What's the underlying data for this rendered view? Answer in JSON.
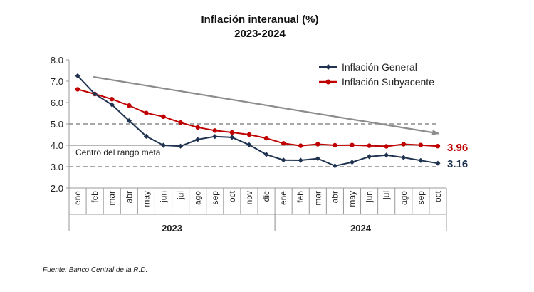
{
  "chart_data": {
    "type": "line",
    "title": "Inflación interanual (%)",
    "subtitle": "2023-2024",
    "ylim": [
      2.0,
      8.0
    ],
    "yticks": [
      "2.0",
      "3.0",
      "4.0",
      "5.0",
      "6.0",
      "7.0",
      "8.0"
    ],
    "categories": [
      "ene",
      "feb",
      "mar",
      "abr",
      "may",
      "jun",
      "jul",
      "ago",
      "sep",
      "oct",
      "nov",
      "dic",
      "ene",
      "feb",
      "mar",
      "abr",
      "may",
      "jun",
      "jul",
      "ago",
      "sep",
      "oct"
    ],
    "years": [
      {
        "label": "2023",
        "start": 0,
        "end": 11
      },
      {
        "label": "2024",
        "start": 12,
        "end": 21
      }
    ],
    "series": [
      {
        "name": "Inflación General",
        "color": "#1f3350",
        "values": [
          7.25,
          6.4,
          5.9,
          5.15,
          4.42,
          4.0,
          3.96,
          4.27,
          4.41,
          4.37,
          4.02,
          3.57,
          3.31,
          3.3,
          3.38,
          3.04,
          3.21,
          3.47,
          3.54,
          3.43,
          3.29,
          3.16
        ]
      },
      {
        "name": "Inflación Subyacente",
        "color": "#c00000",
        "values": [
          6.62,
          6.4,
          6.16,
          5.86,
          5.51,
          5.34,
          5.06,
          4.84,
          4.69,
          4.6,
          4.5,
          4.33,
          4.09,
          3.98,
          4.05,
          4.0,
          4.01,
          3.98,
          3.95,
          4.05,
          4.01,
          3.96
        ]
      }
    ],
    "reference_lines": [
      {
        "value": 5.0,
        "style": "dashed"
      },
      {
        "value": 4.0,
        "style": "solid",
        "label": "Centro del rango meta"
      },
      {
        "value": 3.0,
        "style": "dashed"
      }
    ],
    "trend_arrow": {
      "from": [
        1,
        7.2
      ],
      "to": [
        21,
        4.55
      ]
    },
    "end_labels": [
      {
        "text": "3.96",
        "color": "#c00000"
      },
      {
        "text": "3.16",
        "color": "#1f3350"
      }
    ],
    "legend_position": "top-right"
  },
  "source": "Fuente: Banco Central de la R.D."
}
